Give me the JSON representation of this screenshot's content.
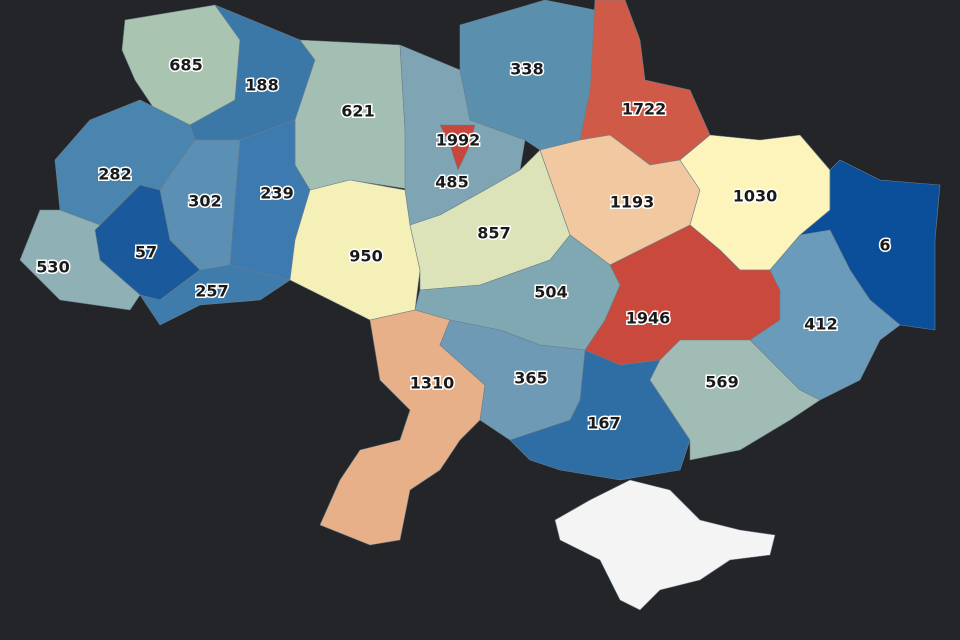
{
  "regions": [
    {
      "value": 685,
      "color": "#a9c4b0"
    },
    {
      "value": 188,
      "color": "#3b78a8"
    },
    {
      "value": 621,
      "color": "#a3bfb3"
    },
    {
      "value": 485,
      "color": "#7fa5b5"
    },
    {
      "value": 1992,
      "color": "#c8463b"
    },
    {
      "value": 338,
      "color": "#5a8fae"
    },
    {
      "value": 1722,
      "color": "#d05a48"
    },
    {
      "value": 282,
      "color": "#4a85b0"
    },
    {
      "value": 302,
      "color": "#5b8fb3"
    },
    {
      "value": 239,
      "color": "#3d7aaf"
    },
    {
      "value": 57,
      "color": "#1a5a9c"
    },
    {
      "value": 530,
      "color": "#8fb0b5"
    },
    {
      "value": 257,
      "color": "#3f7bab"
    },
    {
      "value": 950,
      "color": "#f5f0b8"
    },
    {
      "value": 857,
      "color": "#dde3b8"
    },
    {
      "value": 1193,
      "color": "#f2c8a0"
    },
    {
      "value": 1030,
      "color": "#fdf4bb"
    },
    {
      "value": 6,
      "color": "#0b4f9a"
    },
    {
      "value": 504,
      "color": "#7fa8b2"
    },
    {
      "value": 1946,
      "color": "#c94a3c"
    },
    {
      "value": 412,
      "color": "#6b9bbb"
    },
    {
      "value": 1310,
      "color": "#e8b088"
    },
    {
      "value": 365,
      "color": "#6e9ab5"
    },
    {
      "value": 167,
      "color": "#2f6ea5"
    },
    {
      "value": 569,
      "color": "#a0bcb5"
    }
  ]
}
